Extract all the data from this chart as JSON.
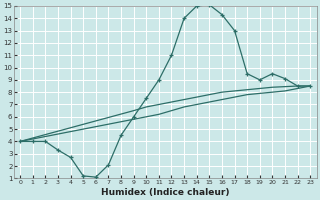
{
  "title": "",
  "xlabel": "Humidex (Indice chaleur)",
  "xlim": [
    -0.5,
    23.5
  ],
  "ylim": [
    1,
    15
  ],
  "yticks": [
    1,
    2,
    3,
    4,
    5,
    6,
    7,
    8,
    9,
    10,
    11,
    12,
    13,
    14,
    15
  ],
  "xticks": [
    0,
    1,
    2,
    3,
    4,
    5,
    6,
    7,
    8,
    9,
    10,
    11,
    12,
    13,
    14,
    15,
    16,
    17,
    18,
    19,
    20,
    21,
    22,
    23
  ],
  "bg_color": "#cce8e8",
  "line_color": "#2d6e68",
  "grid_color": "#ffffff",
  "curve1_x": [
    0,
    1,
    2,
    3,
    4,
    5,
    6,
    7,
    8,
    9,
    10,
    11,
    12,
    13,
    14,
    15,
    16,
    17,
    18,
    19,
    20,
    21,
    22,
    23
  ],
  "curve1_y": [
    4.0,
    4.0,
    4.0,
    3.3,
    2.7,
    1.2,
    1.1,
    2.1,
    4.5,
    6.0,
    7.5,
    9.0,
    11.0,
    14.0,
    15.0,
    15.1,
    14.3,
    13.0,
    9.5,
    9.0,
    9.5,
    9.1,
    8.5,
    8.5
  ],
  "curve2_x": [
    0,
    9,
    10,
    11,
    12,
    13,
    14,
    15,
    16,
    17,
    18,
    19,
    20,
    21,
    22,
    23
  ],
  "curve2_y": [
    4.0,
    6.5,
    6.8,
    7.0,
    7.2,
    7.4,
    7.6,
    7.8,
    8.0,
    8.1,
    8.2,
    8.3,
    8.4,
    8.45,
    8.5,
    8.5
  ],
  "curve3_x": [
    0,
    1,
    2,
    3,
    4,
    5,
    6,
    7,
    8,
    9,
    10,
    11,
    12,
    13,
    14,
    15,
    16,
    17,
    18,
    19,
    20,
    21,
    22,
    23
  ],
  "curve3_y": [
    4.0,
    4.2,
    4.4,
    4.6,
    4.8,
    5.0,
    5.2,
    5.4,
    5.6,
    5.8,
    6.0,
    6.2,
    6.5,
    6.8,
    7.0,
    7.2,
    7.4,
    7.6,
    7.8,
    7.9,
    8.0,
    8.1,
    8.3,
    8.5
  ]
}
